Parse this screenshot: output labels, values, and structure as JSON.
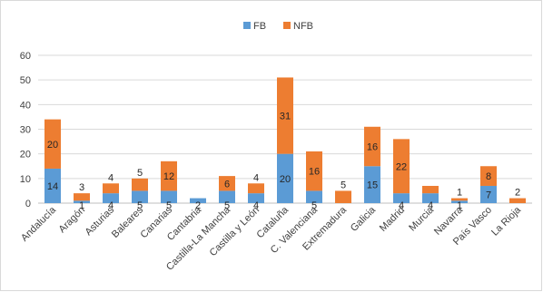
{
  "chart_data": {
    "type": "bar",
    "stacked": true,
    "title": "",
    "xlabel": "",
    "ylabel": "",
    "ylim": [
      0,
      60
    ],
    "yticks": [
      0,
      10,
      20,
      30,
      40,
      50,
      60
    ],
    "grid": true,
    "legend_position": "top",
    "categories": [
      "Andalucía",
      "Aragón",
      "Asturias",
      "Baleares",
      "Canarias",
      "Cantabria",
      "Castilla-La Mancha",
      "Castilla y León",
      "Cataluña",
      "C. Valenciana",
      "Extremadura",
      "Galicia",
      "Madrid",
      "Murcia",
      "Navarra",
      "País Vasco",
      "La Rioja"
    ],
    "series": [
      {
        "name": "FB",
        "color": "#5b9bd5",
        "values": [
          14,
          1,
          4,
          5,
          5,
          2,
          5,
          4,
          20,
          5,
          0,
          15,
          4,
          4,
          1,
          7,
          0
        ],
        "labels": [
          "14",
          "1",
          "4",
          "5",
          "5",
          "2",
          "5",
          "4",
          "20",
          "5",
          "",
          "15",
          "4",
          "4",
          "1",
          "7",
          ""
        ]
      },
      {
        "name": "NFB",
        "color": "#ed7d31",
        "values": [
          20,
          3,
          4,
          5,
          12,
          0,
          6,
          4,
          31,
          16,
          5,
          16,
          22,
          3,
          1,
          8,
          2
        ],
        "labels": [
          "20",
          "3",
          "4",
          "5",
          "12",
          "",
          "6",
          "4",
          "31",
          "16",
          "5",
          "16",
          "22",
          "",
          "1",
          "8",
          "2"
        ]
      }
    ]
  }
}
